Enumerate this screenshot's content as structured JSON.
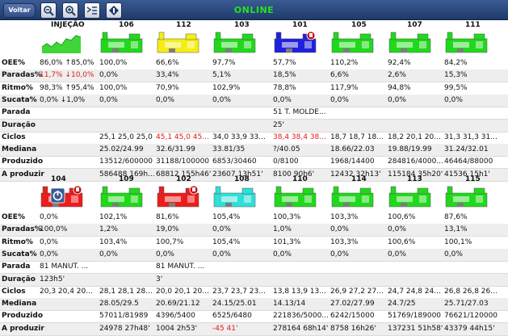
{
  "toolbar": {
    "back_label": "Voltar",
    "status": "ONLINE",
    "status_color": "#25e21f"
  },
  "row_labels": [
    "OEE%",
    "Paradas%",
    "Ritmo%",
    "Sucata%",
    "Parada",
    "Duração",
    "Ciclos",
    "Mediana",
    "Produzido",
    "A produzir"
  ],
  "panels": [
    {
      "machines": [
        {
          "name": "INJEÇÃO",
          "color": "green",
          "icon": "injection-chart-icon",
          "values": [
            "86,0% ↑85,0%",
            "11,7% ↓10,0%",
            "98,3% ↑95,4%",
            "0,0% ↓1,0%",
            "",
            "",
            "",
            "",
            "",
            ""
          ],
          "red": [
            1
          ]
        },
        {
          "name": "106",
          "color": "green",
          "icon": "",
          "values": [
            "100,0%",
            "0,0%",
            "100,0%",
            "0,0%",
            "",
            "",
            "25,1 25,0 25,0",
            "25.02/24.99",
            "13512/600000",
            "586488 169h..."
          ],
          "red": []
        },
        {
          "name": "112",
          "color": "yellow",
          "icon": "",
          "values": [
            "66,6%",
            "33,4%",
            "70,9%",
            "0,0%",
            "",
            "",
            "45,1 45,0 45...",
            "32.6/31.99",
            "31188/100000",
            "68812 155h46'"
          ],
          "red": [
            6
          ]
        },
        {
          "name": "103",
          "color": "green",
          "icon": "",
          "values": [
            "97,7%",
            "5,1%",
            "102,9%",
            "0,0%",
            "",
            "",
            "34,0 33,9 33...",
            "33.81/35",
            "6853/30460",
            "23607 13h51'"
          ],
          "red": []
        },
        {
          "name": "101",
          "color": "blue",
          "icon": "alarm-icon",
          "values": [
            "57,7%",
            "18,5%",
            "78,8%",
            "0,0%",
            "51 T. MOLDE...",
            "25'",
            "38,4 38,4 38...",
            "?/40.05",
            "0/8100",
            "8100 90h6'"
          ],
          "red": [
            6
          ]
        },
        {
          "name": "105",
          "color": "green",
          "icon": "",
          "values": [
            "110,2%",
            "6,6%",
            "117,9%",
            "0,0%",
            "",
            "",
            "18,7 18,7 18...",
            "18.66/22.03",
            "1968/14400",
            "12432 32h13'"
          ],
          "red": []
        },
        {
          "name": "107",
          "color": "green",
          "icon": "",
          "values": [
            "92,4%",
            "2,6%",
            "94,8%",
            "0,0%",
            "",
            "",
            "18,2 20,1 20...",
            "19.88/19.99",
            "284816/4000...",
            "115184 35h20'"
          ],
          "red": []
        },
        {
          "name": "111",
          "color": "green",
          "icon": "",
          "values": [
            "84,2%",
            "15,3%",
            "99,5%",
            "0,0%",
            "",
            "",
            "31,3 31,3 31...",
            "31.24/32.01",
            "46464/88000",
            "41536 15h1'"
          ],
          "red": []
        }
      ]
    },
    {
      "machines": [
        {
          "name": "104",
          "color": "red",
          "icon": "power-icon",
          "values": [
            "0,0%",
            "100,0%",
            "0,0%",
            "0,0%",
            "81 MANUT. ...",
            "123h5'",
            "20,3 20,4 20...",
            "",
            "",
            ""
          ],
          "red": []
        },
        {
          "name": "109",
          "color": "green",
          "icon": "",
          "values": [
            "102,1%",
            "1,2%",
            "103,4%",
            "0,0%",
            "",
            "",
            "28,1 28,1 28...",
            "28.05/29.5",
            "57011/81989",
            "24978 27h48'"
          ],
          "red": []
        },
        {
          "name": "102",
          "color": "red",
          "icon": "alarm-icon",
          "values": [
            "81,6%",
            "19,0%",
            "100,7%",
            "0,0%",
            "81 MANUT. ...",
            "3'",
            "20,0 20,1 20...",
            "20.69/21.12",
            "4396/5400",
            "1004 2h53'"
          ],
          "red": []
        },
        {
          "name": "108",
          "color": "cyan",
          "icon": "",
          "values": [
            "105,4%",
            "0,0%",
            "105,4%",
            "0,0%",
            "",
            "",
            "23,7 23,7 23...",
            "24.15/25.01",
            "6525/6480",
            "-45 41'"
          ],
          "red": [
            9
          ]
        },
        {
          "name": "110",
          "color": "green",
          "icon": "",
          "values": [
            "100,3%",
            "1,0%",
            "101,3%",
            "0,0%",
            "",
            "",
            "13,8 13,9 13...",
            "14.13/14",
            "221836/5000...",
            "278164 68h14'"
          ],
          "red": []
        },
        {
          "name": "114",
          "color": "green",
          "icon": "",
          "values": [
            "103,3%",
            "0,0%",
            "103,3%",
            "0,0%",
            "",
            "",
            "26,9 27,2 27...",
            "27.02/27.99",
            "6242/15000",
            "8758 16h26'"
          ],
          "red": []
        },
        {
          "name": "113",
          "color": "green",
          "icon": "",
          "values": [
            "100,6%",
            "0,0%",
            "100,6%",
            "0,0%",
            "",
            "",
            "24,7 24,8 24...",
            "24.7/25",
            "51769/189000",
            "137231 51h58'"
          ],
          "red": []
        },
        {
          "name": "115",
          "color": "green",
          "icon": "",
          "values": [
            "87,6%",
            "13,1%",
            "100,1%",
            "0,0%",
            "",
            "",
            "26,8 26,8 26...",
            "25.71/27.03",
            "76621/120000",
            "43379 44h15'"
          ],
          "red": []
        }
      ]
    }
  ],
  "colors": {
    "green": "#21d91c",
    "yellow": "#f4ee14",
    "blue": "#2020e0",
    "red": "#ee1c1c",
    "cyan": "#2ee0d8",
    "injection": "#3fd63a",
    "red_text": "#e21b1b"
  }
}
